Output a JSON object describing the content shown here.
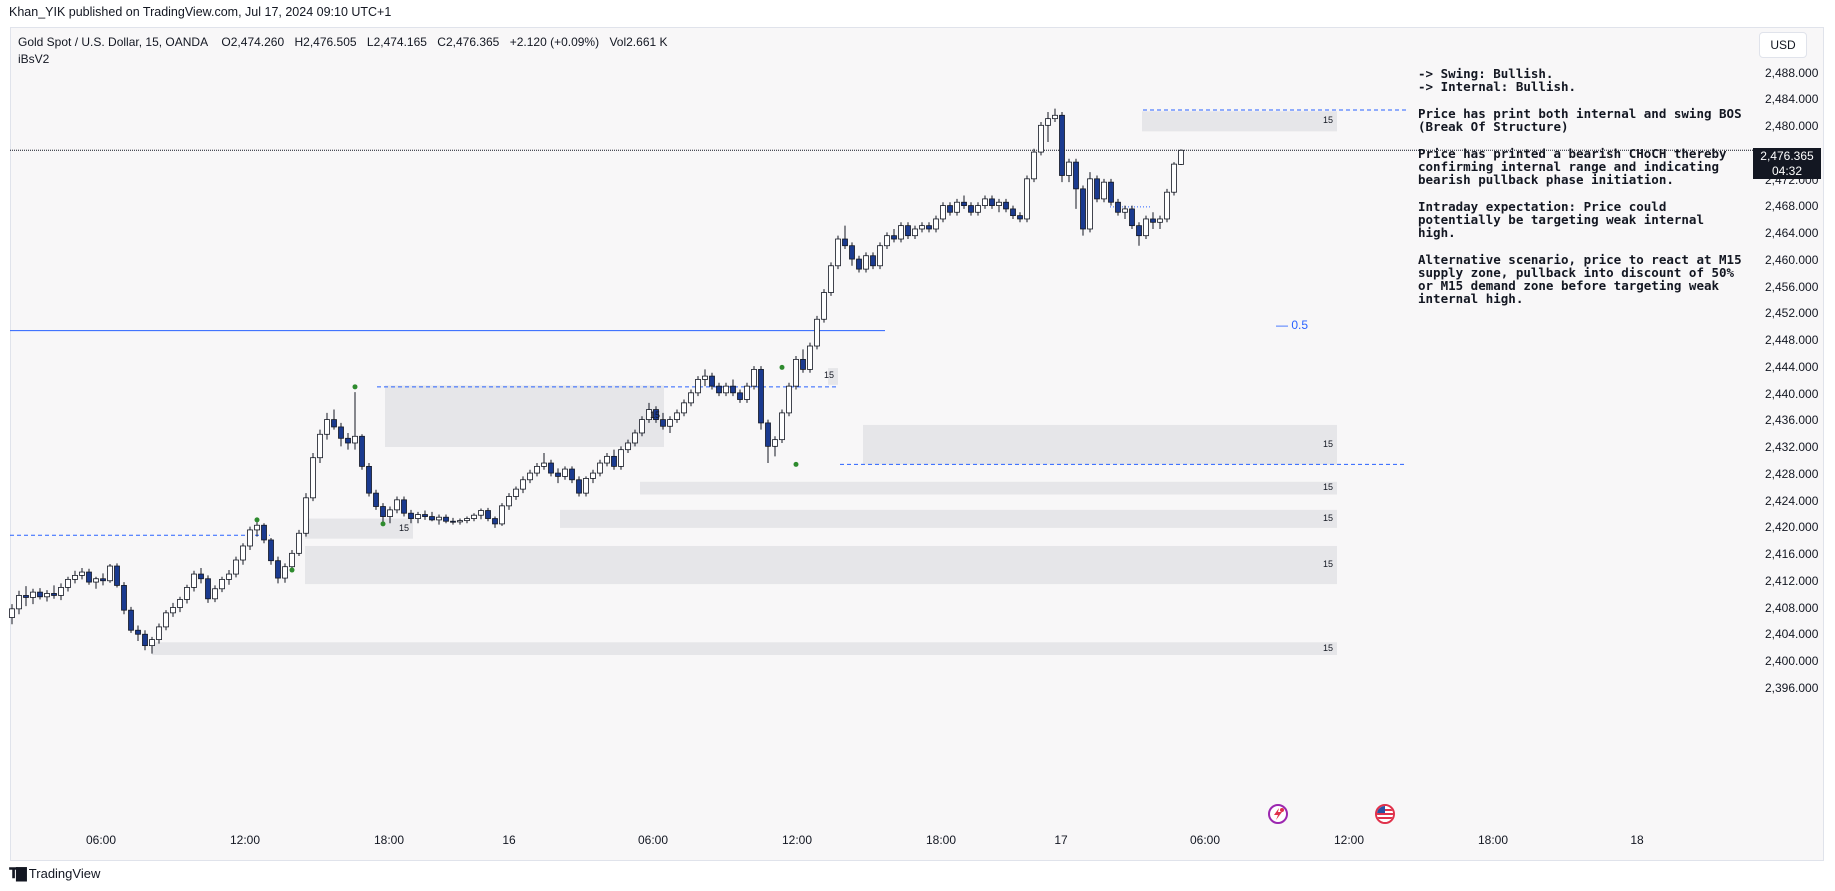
{
  "header": {
    "publisher": "Khan_YIK published on TradingView.com, Jul 17, 2024 09:10 UTC+1"
  },
  "legend": {
    "symbol": "Gold Spot / U.S. Dollar, 15, OANDA",
    "open": "O2,474.260",
    "high": "H2,476.505",
    "low": "L2,474.165",
    "close": "C2,476.365",
    "change": "+2.120 (+0.09%)",
    "volume": "Vol2.661 K",
    "indicator": "iBsV2"
  },
  "currency": "USD",
  "last_price": {
    "value": "2,476.365",
    "countdown": "04:32"
  },
  "price_axis": [
    "2,488.000",
    "2,484.000",
    "2,480.000",
    "2,476.000",
    "2,472.000",
    "2,468.000",
    "2,464.000",
    "2,460.000",
    "2,456.000",
    "2,452.000",
    "2,448.000",
    "2,444.000",
    "2,440.000",
    "2,436.000",
    "2,432.000",
    "2,428.000",
    "2,424.000",
    "2,420.000",
    "2,416.000",
    "2,412.000",
    "2,408.000",
    "2,404.000",
    "2,400.000",
    "2,396.000"
  ],
  "time_axis": [
    "06:00",
    "12:00",
    "18:00",
    "16",
    "06:00",
    "12:00",
    "18:00",
    "17",
    "06:00",
    "12:00",
    "18:00",
    "18"
  ],
  "notes": {
    "line1": "-> Swing: Bullish.",
    "line2": "-> Internal: Bullish.",
    "p1": "Price has print both internal and swing BOS (Break Of Structure)",
    "p2": "Price has printed a bearish CHoCH thereby confirming internal range and indicating bearish pullback phase initiation.",
    "p3": "Intraday expectation: Price could potentially be targeting weak internal high.",
    "p4": "Alternative scenario, price to react at M15 supply zone, pullback into discount of 50% or M15 demand zone before targeting weak internal high."
  },
  "zone_label": "15",
  "fib_label": "— 0.5",
  "footer": {
    "brand": "TradingView"
  },
  "colors": {
    "bull_candle": "#ffffff",
    "bear_candle": "#1a3a8f",
    "wick": "#131722",
    "zone": "#e6e6e9",
    "structure_line": "#2962ff",
    "pivot_dot": "#2e8b2e",
    "event_red": "#e0314b",
    "event_purple": "#9c27b0"
  },
  "chart_data": {
    "type": "candlestick",
    "symbol": "XAUUSD",
    "interval": "15",
    "ylim": [
      2394,
      2490
    ],
    "candles": [
      [
        2406.5,
        2408.5,
        2405.5,
        2407.8
      ],
      [
        2407.8,
        2410.5,
        2407.0,
        2409.8
      ],
      [
        2409.8,
        2411.2,
        2408.2,
        2409.5
      ],
      [
        2409.5,
        2410.8,
        2408.5,
        2410.3
      ],
      [
        2410.3,
        2410.9,
        2409.2,
        2409.6
      ],
      [
        2409.6,
        2410.6,
        2408.9,
        2410.1
      ],
      [
        2410.1,
        2411.3,
        2409.3,
        2409.8
      ],
      [
        2409.8,
        2411.6,
        2409.1,
        2411.0
      ],
      [
        2411.0,
        2412.6,
        2410.4,
        2412.2
      ],
      [
        2412.2,
        2413.5,
        2411.6,
        2412.8
      ],
      [
        2412.8,
        2413.9,
        2412.2,
        2413.3
      ],
      [
        2413.3,
        2413.8,
        2411.4,
        2411.8
      ],
      [
        2411.8,
        2412.6,
        2410.8,
        2412.3
      ],
      [
        2412.3,
        2413.1,
        2411.3,
        2412.0
      ],
      [
        2412.0,
        2414.5,
        2411.7,
        2414.2
      ],
      [
        2414.2,
        2414.6,
        2411.0,
        2411.3
      ],
      [
        2411.3,
        2411.8,
        2407.0,
        2407.6
      ],
      [
        2407.6,
        2408.1,
        2404.2,
        2404.6
      ],
      [
        2404.6,
        2405.3,
        2403.0,
        2404.0
      ],
      [
        2404.0,
        2404.6,
        2401.6,
        2402.3
      ],
      [
        2402.3,
        2403.6,
        2401.1,
        2403.2
      ],
      [
        2403.2,
        2405.6,
        2402.6,
        2405.1
      ],
      [
        2405.1,
        2407.6,
        2404.6,
        2407.2
      ],
      [
        2407.2,
        2408.7,
        2406.6,
        2408.0
      ],
      [
        2408.0,
        2409.6,
        2407.3,
        2409.2
      ],
      [
        2409.2,
        2411.4,
        2408.6,
        2411.0
      ],
      [
        2411.0,
        2413.5,
        2410.4,
        2413.0
      ],
      [
        2413.0,
        2413.9,
        2411.6,
        2412.3
      ],
      [
        2412.3,
        2412.8,
        2408.7,
        2409.3
      ],
      [
        2409.3,
        2411.3,
        2408.8,
        2410.8
      ],
      [
        2410.8,
        2412.6,
        2410.3,
        2412.2
      ],
      [
        2412.2,
        2413.6,
        2411.4,
        2413.0
      ],
      [
        2413.0,
        2415.6,
        2412.5,
        2415.1
      ],
      [
        2415.1,
        2417.6,
        2414.4,
        2417.2
      ],
      [
        2417.2,
        2420.1,
        2416.6,
        2419.6
      ],
      [
        2419.6,
        2421.1,
        2418.6,
        2420.3
      ],
      [
        2420.3,
        2420.6,
        2417.6,
        2418.1
      ],
      [
        2418.1,
        2418.4,
        2414.4,
        2415.0
      ],
      [
        2415.0,
        2415.6,
        2411.6,
        2412.4
      ],
      [
        2412.4,
        2414.6,
        2411.7,
        2414.1
      ],
      [
        2414.1,
        2416.6,
        2413.6,
        2416.1
      ],
      [
        2416.1,
        2419.6,
        2415.7,
        2419.1
      ],
      [
        2419.1,
        2425.1,
        2418.6,
        2424.4
      ],
      [
        2424.4,
        2431.1,
        2423.9,
        2430.4
      ],
      [
        2430.4,
        2434.6,
        2429.6,
        2433.9
      ],
      [
        2433.9,
        2437.1,
        2433.1,
        2436.1
      ],
      [
        2436.1,
        2437.6,
        2434.6,
        2435.0
      ],
      [
        2435.0,
        2435.6,
        2432.1,
        2433.3
      ],
      [
        2433.3,
        2434.1,
        2431.6,
        2432.6
      ],
      [
        2432.6,
        2440.2,
        2431.6,
        2433.6
      ],
      [
        2433.6,
        2433.9,
        2428.6,
        2429.1
      ],
      [
        2429.1,
        2429.6,
        2424.6,
        2425.1
      ],
      [
        2425.1,
        2425.6,
        2422.6,
        2423.1
      ],
      [
        2423.1,
        2423.6,
        2420.6,
        2421.6
      ],
      [
        2421.6,
        2423.1,
        2420.6,
        2422.6
      ],
      [
        2422.6,
        2424.6,
        2422.1,
        2424.1
      ],
      [
        2424.1,
        2424.6,
        2421.6,
        2422.1
      ],
      [
        2422.1,
        2422.6,
        2420.6,
        2421.3
      ],
      [
        2421.3,
        2422.3,
        2420.6,
        2421.9
      ],
      [
        2421.9,
        2422.5,
        2421.1,
        2421.6
      ],
      [
        2421.6,
        2422.3,
        2420.9,
        2421.1
      ],
      [
        2421.1,
        2421.9,
        2420.4,
        2421.5
      ],
      [
        2421.5,
        2421.9,
        2420.6,
        2420.9
      ],
      [
        2420.9,
        2421.4,
        2420.4,
        2420.8
      ],
      [
        2420.8,
        2421.3,
        2420.4,
        2421.0
      ],
      [
        2421.0,
        2421.6,
        2420.6,
        2421.3
      ],
      [
        2421.3,
        2422.1,
        2420.9,
        2421.8
      ],
      [
        2421.8,
        2422.8,
        2421.2,
        2422.5
      ],
      [
        2422.5,
        2422.9,
        2420.9,
        2421.3
      ],
      [
        2421.3,
        2421.6,
        2419.9,
        2420.5
      ],
      [
        2420.5,
        2423.6,
        2420.2,
        2423.2
      ],
      [
        2423.2,
        2425.1,
        2422.6,
        2424.6
      ],
      [
        2424.6,
        2426.1,
        2424.1,
        2425.7
      ],
      [
        2425.7,
        2427.6,
        2425.1,
        2427.1
      ],
      [
        2427.1,
        2428.6,
        2426.6,
        2428.1
      ],
      [
        2428.1,
        2429.6,
        2427.6,
        2429.1
      ],
      [
        2429.1,
        2431.1,
        2428.6,
        2429.6
      ],
      [
        2429.6,
        2430.1,
        2427.6,
        2428.1
      ],
      [
        2428.1,
        2428.8,
        2426.6,
        2427.6
      ],
      [
        2427.6,
        2429.1,
        2427.1,
        2428.7
      ],
      [
        2428.7,
        2429.1,
        2426.6,
        2427.1
      ],
      [
        2427.1,
        2427.6,
        2424.6,
        2425.1
      ],
      [
        2425.1,
        2427.6,
        2424.6,
        2427.3
      ],
      [
        2427.3,
        2428.6,
        2426.6,
        2428.1
      ],
      [
        2428.1,
        2430.1,
        2427.6,
        2429.6
      ],
      [
        2429.6,
        2431.1,
        2429.1,
        2430.6
      ],
      [
        2430.6,
        2431.6,
        2428.6,
        2429.1
      ],
      [
        2429.1,
        2432.1,
        2428.6,
        2431.6
      ],
      [
        2431.6,
        2433.1,
        2431.1,
        2432.6
      ],
      [
        2432.6,
        2434.6,
        2432.1,
        2434.1
      ],
      [
        2434.1,
        2436.6,
        2433.6,
        2436.1
      ],
      [
        2436.1,
        2438.6,
        2435.6,
        2437.6
      ],
      [
        2437.6,
        2438.1,
        2435.6,
        2436.1
      ],
      [
        2436.1,
        2437.1,
        2434.6,
        2435.1
      ],
      [
        2435.1,
        2436.6,
        2434.1,
        2436.1
      ],
      [
        2436.1,
        2437.6,
        2435.6,
        2437.1
      ],
      [
        2437.1,
        2439.1,
        2436.6,
        2438.6
      ],
      [
        2438.6,
        2440.6,
        2438.1,
        2440.1
      ],
      [
        2440.1,
        2442.6,
        2439.6,
        2442.1
      ],
      [
        2442.1,
        2443.6,
        2441.1,
        2442.6
      ],
      [
        2442.6,
        2443.1,
        2440.6,
        2441.1
      ],
      [
        2441.1,
        2441.6,
        2439.6,
        2440.1
      ],
      [
        2440.1,
        2441.6,
        2439.6,
        2441.1
      ],
      [
        2441.1,
        2442.1,
        2439.6,
        2440.1
      ],
      [
        2440.1,
        2440.6,
        2438.6,
        2439.1
      ],
      [
        2439.1,
        2441.6,
        2438.6,
        2441.1
      ],
      [
        2441.1,
        2444.1,
        2440.6,
        2443.6
      ],
      [
        2443.6,
        2444.1,
        2434.6,
        2435.6
      ],
      [
        2435.6,
        2436.1,
        2429.6,
        2432.1
      ],
      [
        2432.1,
        2433.6,
        2430.6,
        2433.1
      ],
      [
        2433.1,
        2437.6,
        2432.6,
        2437.1
      ],
      [
        2437.1,
        2441.6,
        2436.6,
        2441.1
      ],
      [
        2441.1,
        2445.6,
        2440.6,
        2445.1
      ],
      [
        2445.1,
        2446.6,
        2443.1,
        2443.6
      ],
      [
        2443.6,
        2447.6,
        2443.1,
        2447.1
      ],
      [
        2447.1,
        2451.6,
        2446.6,
        2451.1
      ],
      [
        2451.1,
        2455.6,
        2450.6,
        2455.1
      ],
      [
        2455.1,
        2459.6,
        2454.6,
        2459.1
      ],
      [
        2459.1,
        2463.6,
        2458.6,
        2463.1
      ],
      [
        2463.1,
        2465.1,
        2461.6,
        2462.1
      ],
      [
        2462.1,
        2462.6,
        2459.1,
        2460.1
      ],
      [
        2460.1,
        2460.6,
        2458.1,
        2458.6
      ],
      [
        2458.6,
        2461.1,
        2458.1,
        2460.6
      ],
      [
        2460.6,
        2461.1,
        2458.6,
        2459.1
      ],
      [
        2459.1,
        2462.6,
        2458.6,
        2462.1
      ],
      [
        2462.1,
        2464.1,
        2461.6,
        2463.6
      ],
      [
        2463.6,
        2464.6,
        2462.6,
        2463.1
      ],
      [
        2463.1,
        2465.6,
        2462.6,
        2465.1
      ],
      [
        2465.1,
        2465.6,
        2463.1,
        2463.6
      ],
      [
        2463.6,
        2465.1,
        2463.1,
        2464.6
      ],
      [
        2464.6,
        2465.6,
        2464.1,
        2465.1
      ],
      [
        2465.1,
        2465.6,
        2464.1,
        2464.6
      ],
      [
        2464.6,
        2466.6,
        2464.1,
        2466.1
      ],
      [
        2466.1,
        2468.6,
        2465.6,
        2468.1
      ],
      [
        2468.1,
        2468.6,
        2466.6,
        2467.1
      ],
      [
        2467.1,
        2469.1,
        2466.6,
        2468.6
      ],
      [
        2468.6,
        2469.6,
        2467.6,
        2468.1
      ],
      [
        2468.1,
        2468.6,
        2466.6,
        2467.1
      ],
      [
        2467.1,
        2468.6,
        2466.6,
        2468.1
      ],
      [
        2468.1,
        2469.6,
        2467.6,
        2469.1
      ],
      [
        2469.1,
        2469.6,
        2467.6,
        2468.1
      ],
      [
        2468.1,
        2469.1,
        2467.1,
        2468.6
      ],
      [
        2468.6,
        2469.1,
        2467.1,
        2467.6
      ],
      [
        2467.6,
        2468.1,
        2466.1,
        2466.6
      ],
      [
        2466.6,
        2467.1,
        2465.6,
        2466.1
      ],
      [
        2466.1,
        2472.6,
        2465.6,
        2472.1
      ],
      [
        2472.1,
        2476.6,
        2471.6,
        2476.1
      ],
      [
        2476.1,
        2480.6,
        2475.6,
        2480.1
      ],
      [
        2480.1,
        2482.1,
        2477.6,
        2481.1
      ],
      [
        2481.1,
        2482.6,
        2480.6,
        2481.6
      ],
      [
        2481.6,
        2482.1,
        2471.6,
        2472.6
      ],
      [
        2472.6,
        2475.1,
        2471.6,
        2474.6
      ],
      [
        2474.6,
        2475.1,
        2467.6,
        2470.6
      ],
      [
        2470.6,
        2471.1,
        2463.6,
        2464.6
      ],
      [
        2464.6,
        2473.1,
        2464.1,
        2472.1
      ],
      [
        2472.1,
        2472.6,
        2468.6,
        2469.1
      ],
      [
        2469.1,
        2472.1,
        2468.6,
        2471.6
      ],
      [
        2471.6,
        2472.1,
        2468.1,
        2468.6
      ],
      [
        2468.6,
        2469.1,
        2466.6,
        2467.1
      ],
      [
        2467.1,
        2468.1,
        2466.1,
        2467.6
      ],
      [
        2467.6,
        2468.1,
        2464.6,
        2465.1
      ],
      [
        2465.1,
        2465.6,
        2462.1,
        2463.6
      ],
      [
        2463.6,
        2466.6,
        2463.1,
        2466.1
      ],
      [
        2466.1,
        2467.1,
        2464.6,
        2465.6
      ],
      [
        2465.6,
        2466.6,
        2464.6,
        2466.1
      ],
      [
        2466.1,
        2470.6,
        2465.6,
        2470.1
      ],
      [
        2470.1,
        2474.6,
        2469.6,
        2474.3
      ],
      [
        2474.26,
        2476.505,
        2474.165,
        2476.365
      ]
    ],
    "zones": [
      {
        "top": 2441.2,
        "bottom": 2432.0,
        "label": "15",
        "extends": "to-bar-88"
      },
      {
        "top": 2482.2,
        "bottom": 2479.2,
        "label": "15",
        "extends": "right"
      },
      {
        "top": 2435.3,
        "bottom": 2429.4,
        "label": "15",
        "extends": "right"
      },
      {
        "top": 2426.8,
        "bottom": 2424.9,
        "label": "15",
        "extends": "right"
      },
      {
        "top": 2422.6,
        "bottom": 2419.9,
        "label": "15",
        "extends": "right"
      },
      {
        "top": 2417.2,
        "bottom": 2411.5,
        "label": "15",
        "extends": "right"
      },
      {
        "top": 2402.8,
        "bottom": 2400.9,
        "label": "15",
        "extends": "right"
      },
      {
        "top": 2421.3,
        "bottom": 2418.3,
        "label": "15",
        "extends": "to-bar-57"
      },
      {
        "top": 2443.8,
        "bottom": 2441.3,
        "label": "15",
        "extends": "to-bar-112"
      }
    ],
    "structure_lines": [
      {
        "price": 2418.8,
        "style": "dashed"
      },
      {
        "price": 2449.4,
        "style": "solid"
      },
      {
        "price": 2441.0,
        "style": "dashed"
      },
      {
        "price": 2482.4,
        "style": "dashed"
      },
      {
        "price": 2429.4,
        "style": "dashed"
      },
      {
        "price": 2476.365,
        "style": "dotted-last-price"
      },
      {
        "price": 2467.9,
        "style": "dotted"
      }
    ],
    "pivots": [
      {
        "bar": 35,
        "price": 2421.1
      },
      {
        "bar": 40,
        "price": 2413.6
      },
      {
        "bar": 49,
        "price": 2441.0
      },
      {
        "bar": 53,
        "price": 2420.5
      },
      {
        "bar": 110,
        "price": 2443.9
      },
      {
        "bar": 112,
        "price": 2429.4
      }
    ],
    "fib_level": {
      "label": "0.5",
      "price": 2456.3
    }
  }
}
